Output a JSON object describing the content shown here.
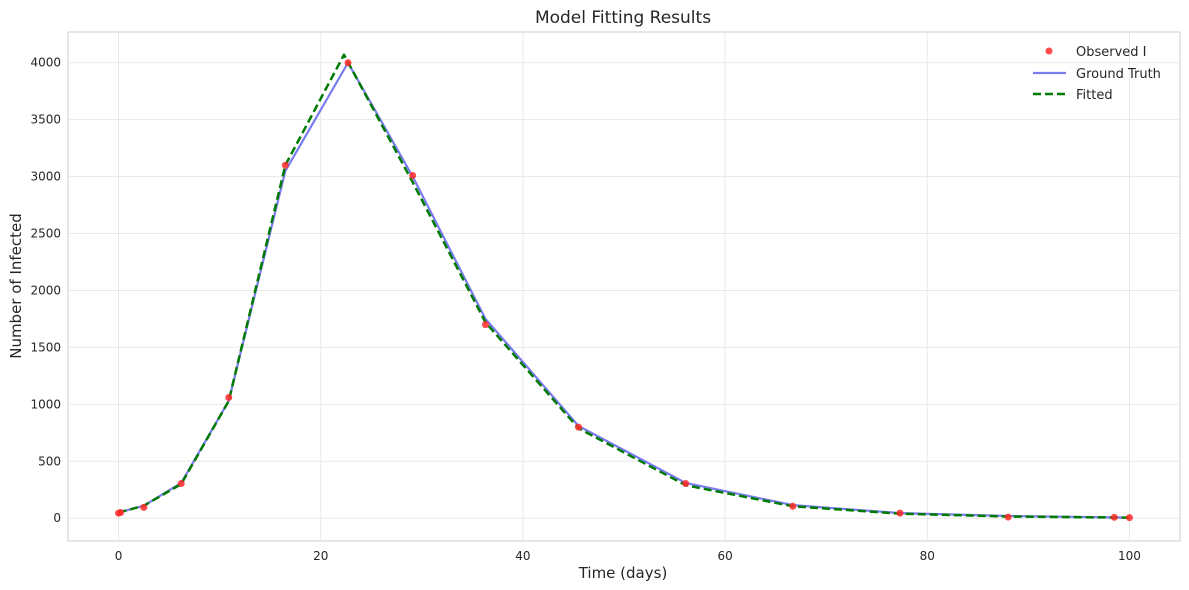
{
  "chart_data": {
    "type": "line",
    "title": "Model Fitting Results",
    "xlabel": "Time (days)",
    "ylabel": "Number of Infected",
    "xlim": [
      -5,
      105
    ],
    "ylim": [
      -200,
      4270
    ],
    "xticks": [
      0,
      20,
      40,
      60,
      80,
      100
    ],
    "yticks": [
      0,
      500,
      1000,
      1500,
      2000,
      2500,
      3000,
      3500,
      4000
    ],
    "grid": true,
    "legend_position": "top-right",
    "series": [
      {
        "name": "Observed I",
        "kind": "scatter",
        "color": "#ff2a2a",
        "x": [
          0,
          0.2,
          2.5,
          6.2,
          10.9,
          16.5,
          22.7,
          29.1,
          36.3,
          45.5,
          56.1,
          66.7,
          77.3,
          88.0,
          98.5,
          100
        ],
        "y": [
          45,
          50,
          95,
          305,
          1060,
          3100,
          4000,
          3010,
          1700,
          800,
          305,
          105,
          45,
          10,
          8,
          5
        ]
      },
      {
        "name": "Ground Truth",
        "kind": "line",
        "color": "#7b7bf0",
        "style": "solid",
        "x": [
          0,
          2.5,
          6.2,
          10.9,
          16.5,
          22.7,
          29.1,
          36.3,
          45.5,
          56.1,
          66.7,
          77.3,
          88.0,
          100
        ],
        "y": [
          50,
          110,
          310,
          1030,
          3050,
          4000,
          3000,
          1750,
          810,
          310,
          115,
          45,
          20,
          5
        ]
      },
      {
        "name": "Fitted",
        "kind": "line",
        "color": "#007a00",
        "style": "dashed",
        "x": [
          0,
          2.5,
          6.2,
          10.9,
          16.5,
          22.3,
          29.1,
          36.3,
          45.5,
          56.1,
          66.7,
          77.3,
          88.0,
          100
        ],
        "y": [
          50,
          110,
          300,
          1030,
          3100,
          4070,
          2950,
          1720,
          790,
          290,
          105,
          40,
          15,
          5
        ]
      }
    ]
  }
}
